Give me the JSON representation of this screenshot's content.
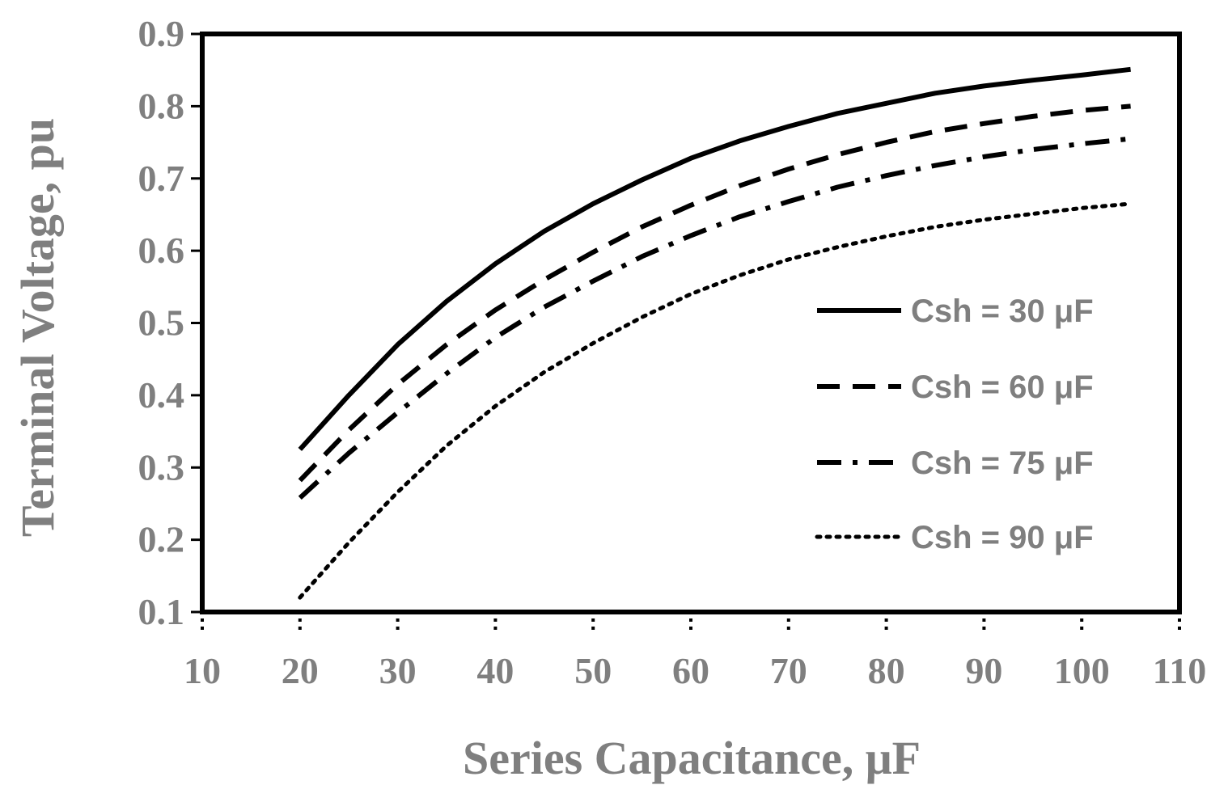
{
  "chart_data": {
    "type": "line",
    "xlabel": "Series Capacitance, μF",
    "ylabel": "Terminal Voltage, pu",
    "xlim": [
      10,
      110
    ],
    "ylim": [
      0.1,
      0.9
    ],
    "x_ticks": [
      "10",
      "20",
      "30",
      "40",
      "50",
      "60",
      "70",
      "80",
      "90",
      "100",
      "110"
    ],
    "y_ticks": [
      "0.1",
      "0.2",
      "0.3",
      "0.4",
      "0.5",
      "0.6",
      "0.7",
      "0.8",
      "0.9"
    ],
    "grid": false,
    "legend_position": "right",
    "x": [
      20,
      25,
      30,
      35,
      40,
      45,
      50,
      55,
      60,
      65,
      70,
      75,
      80,
      85,
      90,
      95,
      100,
      105
    ],
    "series": [
      {
        "name": "Csh = 30 μF",
        "style": "solid",
        "values": [
          0.325,
          0.4,
          0.47,
          0.53,
          0.582,
          0.627,
          0.665,
          0.698,
          0.728,
          0.752,
          0.772,
          0.79,
          0.804,
          0.818,
          0.828,
          0.836,
          0.843,
          0.851
        ]
      },
      {
        "name": "Csh = 60 μF",
        "style": "dash",
        "values": [
          0.282,
          0.352,
          0.415,
          0.47,
          0.518,
          0.56,
          0.598,
          0.633,
          0.663,
          0.69,
          0.713,
          0.733,
          0.75,
          0.765,
          0.776,
          0.786,
          0.794,
          0.8
        ]
      },
      {
        "name": "Csh = 75 μF",
        "style": "dashdot",
        "values": [
          0.258,
          0.32,
          0.376,
          0.43,
          0.48,
          0.522,
          0.558,
          0.592,
          0.621,
          0.647,
          0.668,
          0.688,
          0.704,
          0.718,
          0.73,
          0.74,
          0.748,
          0.755
        ]
      },
      {
        "name": "Csh = 90 μF",
        "style": "dot",
        "values": [
          0.12,
          0.196,
          0.266,
          0.33,
          0.385,
          0.432,
          0.472,
          0.508,
          0.54,
          0.566,
          0.588,
          0.605,
          0.62,
          0.633,
          0.643,
          0.651,
          0.659,
          0.665
        ]
      }
    ]
  }
}
